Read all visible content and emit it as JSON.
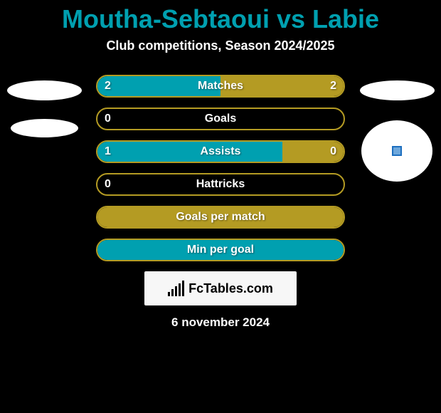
{
  "header": {
    "player1": "Moutha-Sebtaoui",
    "vs": "vs",
    "player2": "Labie",
    "title_color": "#00a0b0",
    "title_fontsize": 36
  },
  "subtitle": "Club competitions, Season 2024/2025",
  "stats": {
    "bar_border_color": "#b49b23",
    "left_fill_color": "#00a0b0",
    "right_fill_color": "#b49b23",
    "rows": [
      {
        "label": "Matches",
        "left": "2",
        "right": "2",
        "left_pct": 50,
        "right_pct": 50
      },
      {
        "label": "Goals",
        "left": "0",
        "right": "",
        "left_pct": 0,
        "right_pct": 0
      },
      {
        "label": "Assists",
        "left": "1",
        "right": "0",
        "left_pct": 75,
        "right_pct": 25
      },
      {
        "label": "Hattricks",
        "left": "0",
        "right": "",
        "left_pct": 0,
        "right_pct": 0
      },
      {
        "label": "Goals per match",
        "left": "",
        "right": "",
        "left_pct": 0,
        "right_pct": 100
      },
      {
        "label": "Min per goal",
        "left": "",
        "right": "",
        "left_pct": 100,
        "right_pct": 0
      }
    ]
  },
  "footer": {
    "site_name": "FcTables.com",
    "date": "6 november 2024"
  },
  "colors": {
    "background": "#000000",
    "text": "#ffffff",
    "logo_bg": "#f7f7f7",
    "logo_text": "#000000"
  }
}
